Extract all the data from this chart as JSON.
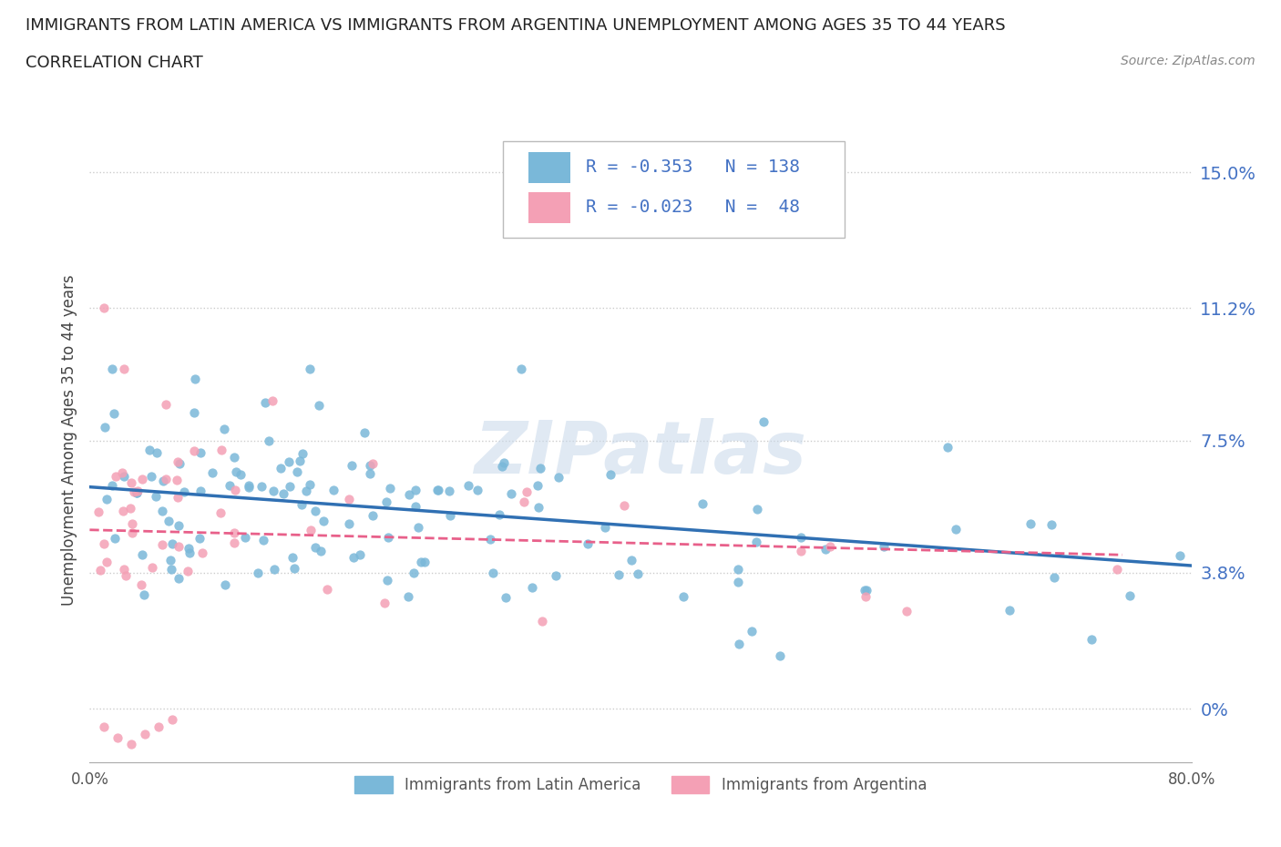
{
  "title_line1": "IMMIGRANTS FROM LATIN AMERICA VS IMMIGRANTS FROM ARGENTINA UNEMPLOYMENT AMONG AGES 35 TO 44 YEARS",
  "title_line2": "CORRELATION CHART",
  "source_text": "Source: ZipAtlas.com",
  "ylabel": "Unemployment Among Ages 35 to 44 years",
  "xlim": [
    0.0,
    0.8
  ],
  "ylim": [
    -0.015,
    0.165
  ],
  "yticks": [
    0.0,
    0.038,
    0.075,
    0.112,
    0.15
  ],
  "ytick_labels": [
    "0%",
    "3.8%",
    "7.5%",
    "11.2%",
    "15.0%"
  ],
  "xticks": [
    0.0,
    0.1,
    0.2,
    0.3,
    0.4,
    0.5,
    0.6,
    0.7,
    0.8
  ],
  "xtick_labels": [
    "0.0%",
    "",
    "",
    "",
    "",
    "",
    "",
    "",
    "80.0%"
  ],
  "blue_color": "#7ab8d9",
  "pink_color": "#f4a0b5",
  "blue_line_color": "#3070b3",
  "pink_line_color": "#e8608a",
  "blue_R": -0.353,
  "blue_N": 138,
  "pink_R": -0.023,
  "pink_N": 48,
  "blue_label": "Immigrants from Latin America",
  "pink_label": "Immigrants from Argentina",
  "watermark": "ZIPatlas",
  "blue_trend_x": [
    0.0,
    0.8
  ],
  "blue_trend_y": [
    0.062,
    0.04
  ],
  "pink_trend_x": [
    0.0,
    0.75
  ],
  "pink_trend_y": [
    0.05,
    0.043
  ]
}
